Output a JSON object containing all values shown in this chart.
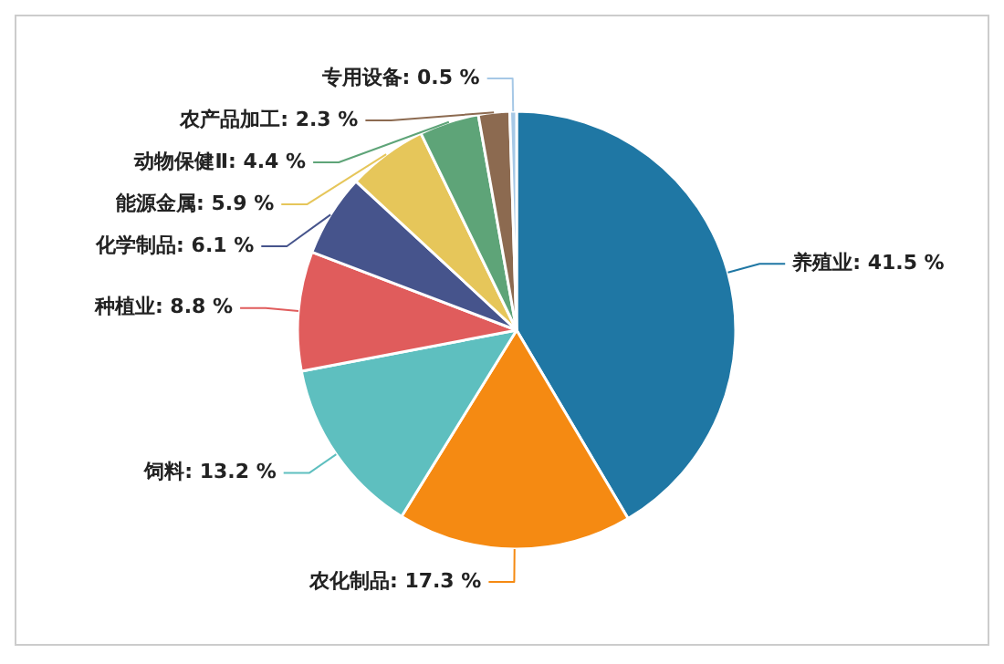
{
  "chart_data": {
    "type": "pie",
    "categories": [
      "养殖业",
      "农化制品",
      "饲料",
      "种植业",
      "化学制品",
      "能源金属",
      "动物保健Ⅱ",
      "农产品加工",
      "专用设备"
    ],
    "values": [
      41.5,
      17.3,
      13.2,
      8.8,
      6.1,
      5.9,
      4.4,
      2.3,
      0.5
    ],
    "value_labels": [
      "41.5 %",
      "17.3 %",
      "13.2 %",
      "8.8 %",
      "6.1 %",
      "5.9 %",
      "4.4 %",
      "2.3 %",
      "0.5 %"
    ],
    "colors": [
      "#1f77a4",
      "#f58a12",
      "#5ebfbf",
      "#e05c5c",
      "#46548c",
      "#e6c65a",
      "#5ea478",
      "#8c6a50",
      "#a6c8e6"
    ]
  }
}
